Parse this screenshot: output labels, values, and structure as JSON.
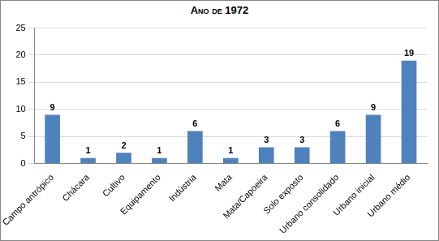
{
  "chart_data": {
    "type": "bar",
    "title": "Ano de 1972",
    "categories": [
      "Campo antrópico",
      "Chácara",
      "Cultivo",
      "Equipamento",
      "Indústria",
      "Mata",
      "Mata/Capoeira",
      "Solo exposto",
      "Urbano consolidado",
      "Urbano inicial",
      "Urbano médio"
    ],
    "values": [
      9,
      1,
      2,
      1,
      6,
      1,
      3,
      3,
      6,
      9,
      19
    ],
    "color": "#4f81bd",
    "ylim": [
      0,
      25
    ],
    "yticks": [
      0,
      5,
      10,
      15,
      20,
      25
    ],
    "grid": true,
    "data_labels": true
  }
}
